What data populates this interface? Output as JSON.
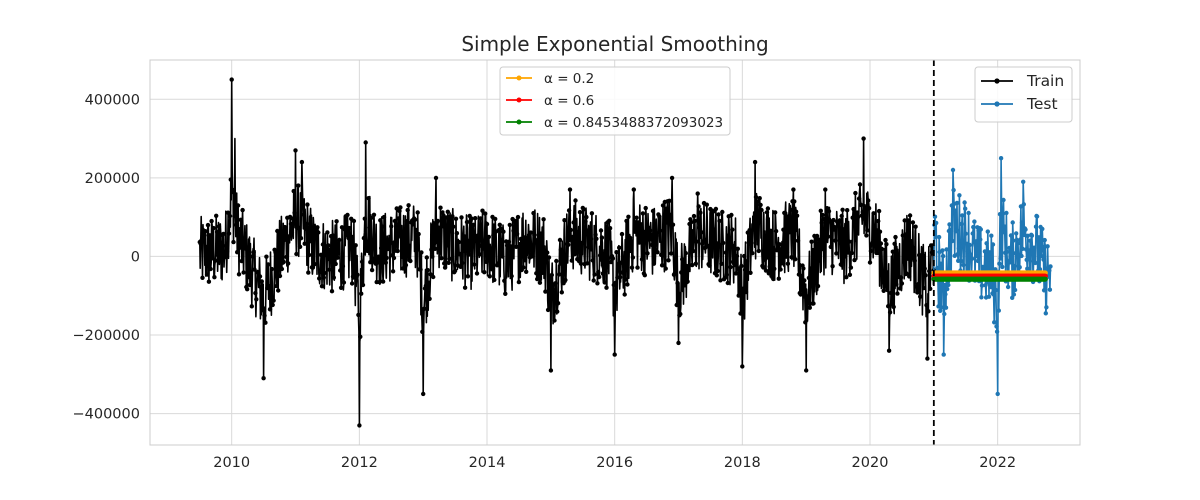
{
  "chart_data": {
    "type": "line",
    "title": "Simple Exponential Smoothing",
    "xlabel": "",
    "ylabel": "",
    "xlim": [
      2008.72,
      2023.29
    ],
    "ylim": [
      -480000,
      500000
    ],
    "x_ticks": [
      2010,
      2012,
      2014,
      2016,
      2018,
      2020,
      2022
    ],
    "x_tick_labels": [
      "2010",
      "2012",
      "2014",
      "2016",
      "2018",
      "2020",
      "2022"
    ],
    "y_ticks": [
      -400000,
      -200000,
      0,
      200000,
      400000
    ],
    "y_tick_labels": [
      "−400000",
      "−200000",
      "0",
      "200000",
      "400000"
    ],
    "grid": true,
    "split_line": {
      "x": 2021.0,
      "style": "dashed",
      "color": "#000000"
    },
    "legend_forecast": {
      "placement": "top-center",
      "entries": [
        {
          "label": "α = 0.2",
          "color": "#ffa500"
        },
        {
          "label": "α = 0.6",
          "color": "#ff0000"
        },
        {
          "label": "α = 0.8453488372093023",
          "color": "#008000"
        }
      ]
    },
    "legend_series": {
      "placement": "top-right",
      "entries": [
        {
          "label": "Train",
          "color": "#000000"
        },
        {
          "label": "Test",
          "color": "#1f77b4"
        }
      ]
    },
    "series": [
      {
        "name": "Train",
        "color": "#000000",
        "x_start": 2009.5,
        "x_end": 2021.0,
        "anchors": [
          [
            2009.5,
            20000
          ],
          [
            2009.7,
            30000
          ],
          [
            2009.9,
            60000
          ],
          [
            2010.0,
            450000
          ],
          [
            2010.05,
            300000
          ],
          [
            2010.1,
            150000
          ],
          [
            2010.3,
            -80000
          ],
          [
            2010.5,
            -310000
          ],
          [
            2010.8,
            60000
          ],
          [
            2011.0,
            270000
          ],
          [
            2011.1,
            240000
          ],
          [
            2011.3,
            40000
          ],
          [
            2011.6,
            -10000
          ],
          [
            2011.9,
            60000
          ],
          [
            2012.0,
            -430000
          ],
          [
            2012.1,
            290000
          ],
          [
            2012.3,
            40000
          ],
          [
            2012.6,
            100000
          ],
          [
            2012.9,
            140000
          ],
          [
            2013.0,
            -350000
          ],
          [
            2013.2,
            200000
          ],
          [
            2013.5,
            60000
          ],
          [
            2013.8,
            20000
          ],
          [
            2014.0,
            100000
          ],
          [
            2014.3,
            -50000
          ],
          [
            2014.6,
            150000
          ],
          [
            2014.9,
            50000
          ],
          [
            2015.0,
            -290000
          ],
          [
            2015.3,
            170000
          ],
          [
            2015.6,
            90000
          ],
          [
            2015.9,
            30000
          ],
          [
            2016.0,
            -250000
          ],
          [
            2016.3,
            170000
          ],
          [
            2016.6,
            100000
          ],
          [
            2016.9,
            200000
          ],
          [
            2017.0,
            -220000
          ],
          [
            2017.3,
            160000
          ],
          [
            2017.6,
            90000
          ],
          [
            2017.9,
            50000
          ],
          [
            2018.0,
            -280000
          ],
          [
            2018.2,
            240000
          ],
          [
            2018.5,
            80000
          ],
          [
            2018.8,
            170000
          ],
          [
            2019.0,
            -290000
          ],
          [
            2019.3,
            170000
          ],
          [
            2019.6,
            60000
          ],
          [
            2019.9,
            300000
          ],
          [
            2020.1,
            150000
          ],
          [
            2020.3,
            -240000
          ],
          [
            2020.6,
            120000
          ],
          [
            2020.9,
            -260000
          ],
          [
            2021.0,
            30000
          ]
        ],
        "volatility": 95000
      },
      {
        "name": "Test",
        "color": "#1f77b4",
        "x_start": 2021.0,
        "x_end": 2022.83,
        "anchors": [
          [
            2021.0,
            60000
          ],
          [
            2021.15,
            -250000
          ],
          [
            2021.3,
            220000
          ],
          [
            2021.5,
            150000
          ],
          [
            2021.7,
            -60000
          ],
          [
            2021.9,
            -100000
          ],
          [
            2022.0,
            -350000
          ],
          [
            2022.05,
            250000
          ],
          [
            2022.2,
            -80000
          ],
          [
            2022.4,
            190000
          ],
          [
            2022.6,
            60000
          ],
          [
            2022.75,
            -140000
          ],
          [
            2022.83,
            -110000
          ]
        ],
        "volatility": 100000
      }
    ],
    "forecasts": [
      {
        "name": "α = 0.2",
        "color": "#ffa500",
        "x_start": 2021.0,
        "x_end": 2022.75,
        "value": -42000
      },
      {
        "name": "α = 0.6",
        "color": "#ff0000",
        "x_start": 2021.0,
        "x_end": 2022.75,
        "value": -50000
      },
      {
        "name": "α = 0.8453488372093023",
        "color": "#008000",
        "x_start": 2021.0,
        "x_end": 2022.75,
        "value": -58000
      }
    ]
  }
}
